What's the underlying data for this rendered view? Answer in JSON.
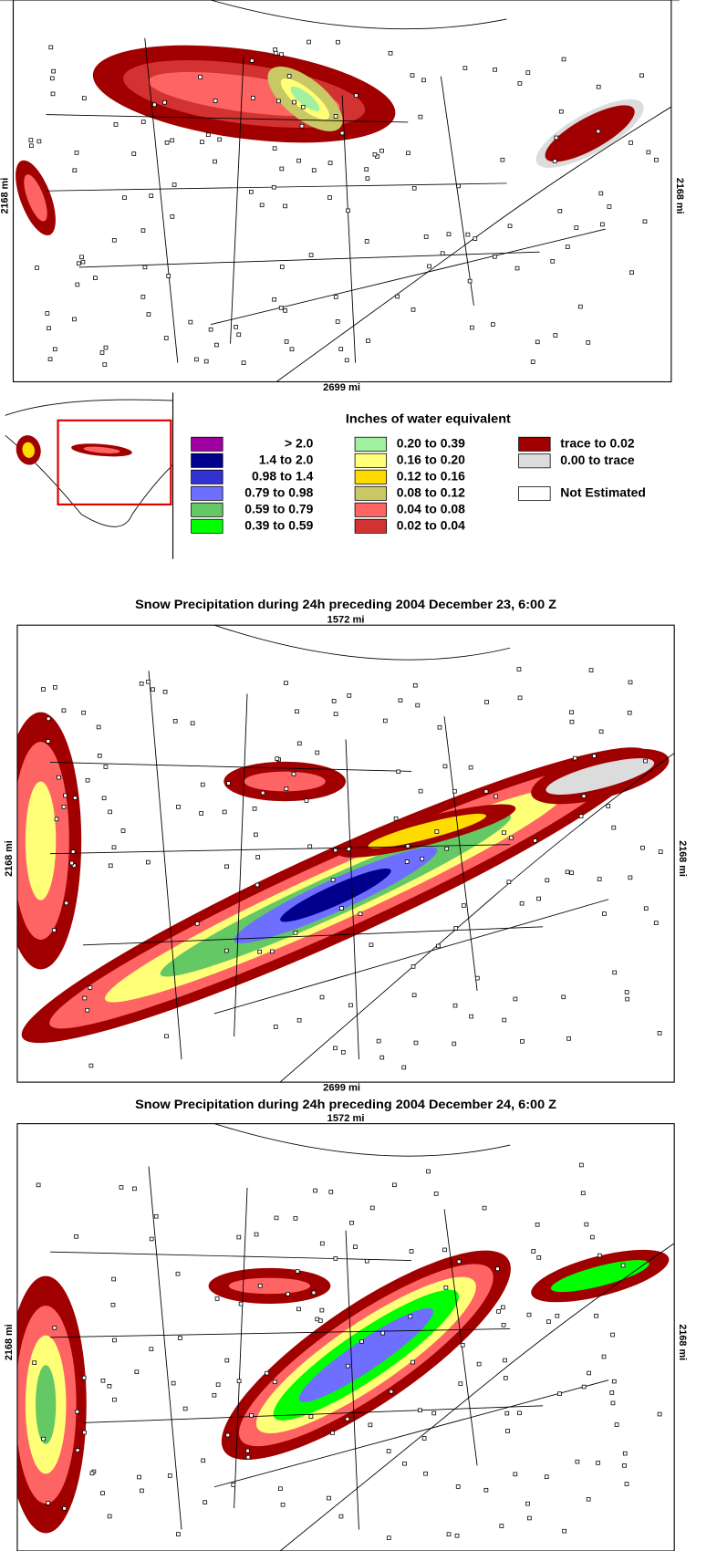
{
  "panels": [
    {
      "left_label": "2168 mi",
      "right_label": "2168 mi",
      "bottom_label": "2699 mi"
    },
    {
      "title": "Snow Precipitation during 24h preceding 2004 December 23, 6:00 Z",
      "top_label": "1572 mi",
      "left_label": "2168 mi",
      "right_label": "2168 mi",
      "bottom_label": "2699 mi"
    },
    {
      "title": "Snow Precipitation during 24h preceding 2004 December 24, 6:00 Z",
      "top_label": "1572 mi",
      "left_label": "2168 mi",
      "right_label": "2168 mi"
    }
  ],
  "legend": {
    "title": "Inches of water equivalent",
    "items": [
      {
        "label": ">   2.0",
        "color": "#a000a0"
      },
      {
        "label": "1.4 to  2.0",
        "color": "#00008c"
      },
      {
        "label": "0.98 to  1.4",
        "color": "#3232d2"
      },
      {
        "label": "0.79 to 0.98",
        "color": "#6e6eff"
      },
      {
        "label": "0.59 to 0.79",
        "color": "#64c864"
      },
      {
        "label": "0.39 to 0.59",
        "color": "#00ff00"
      },
      {
        "label": "0.20 to 0.39",
        "color": "#a0f0a0"
      },
      {
        "label": "0.16 to 0.20",
        "color": "#ffff78"
      },
      {
        "label": "0.12 to 0.16",
        "color": "#ffdc00"
      },
      {
        "label": "0.08 to 0.12",
        "color": "#c8c864"
      },
      {
        "label": "0.04 to 0.08",
        "color": "#ff6464"
      },
      {
        "label": "0.02 to 0.04",
        "color": "#d23232"
      },
      {
        "label": "trace to 0.02",
        "color": "#a00000"
      },
      {
        "label": "0.00 to trace",
        "color": "#dcdcdc"
      },
      {
        "label": "Not Estimated",
        "color": "#ffffff"
      }
    ]
  }
}
